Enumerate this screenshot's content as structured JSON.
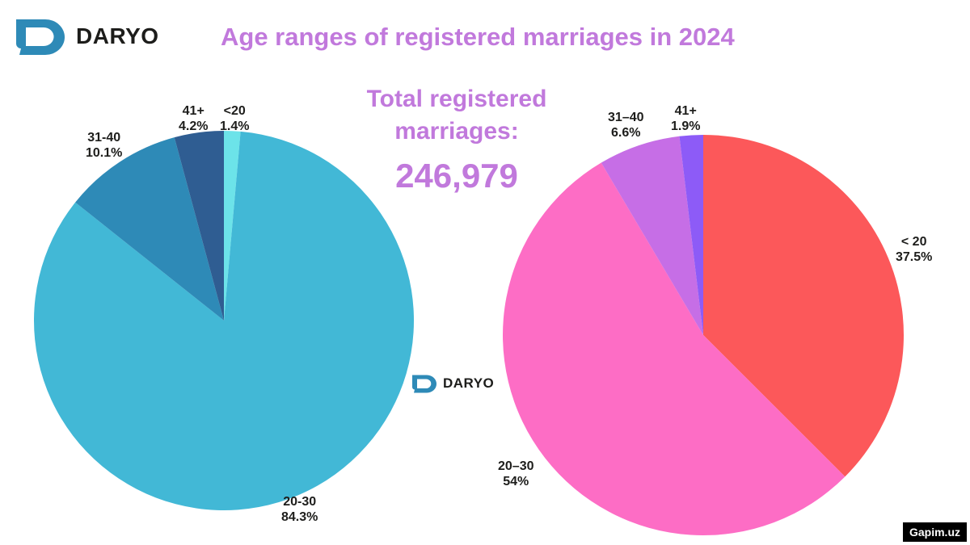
{
  "brand": {
    "name": "DARYO"
  },
  "title": "Age ranges of registered marriages in 2024",
  "total": {
    "label": "Total registered marriages:",
    "value": "246,979"
  },
  "credit": "Gapim.uz",
  "chart_data": [
    {
      "type": "pie",
      "slices": [
        {
          "label": "<20",
          "value": 1.4,
          "value_label": "1.4%",
          "color": "#6ce3e9"
        },
        {
          "label": "20-30",
          "value": 84.3,
          "value_label": "84.3%",
          "color": "#42b8d6"
        },
        {
          "label": "31-40",
          "value": 10.1,
          "value_label": "10.1%",
          "color": "#2e8ab7"
        },
        {
          "label": "41+",
          "value": 4.2,
          "value_label": "4.2%",
          "color": "#2f5d92"
        }
      ]
    },
    {
      "type": "pie",
      "slices": [
        {
          "label": "< 20",
          "value": 37.5,
          "value_label": "37.5%",
          "color": "#fc585a"
        },
        {
          "label": "20–30",
          "value": 54,
          "value_label": "54%",
          "color": "#fd6dc5"
        },
        {
          "label": "31–40",
          "value": 6.6,
          "value_label": "6.6%",
          "color": "#c66ee6"
        },
        {
          "label": "41+",
          "value": 1.9,
          "value_label": "1.9%",
          "color": "#8d5bf7"
        }
      ]
    }
  ]
}
